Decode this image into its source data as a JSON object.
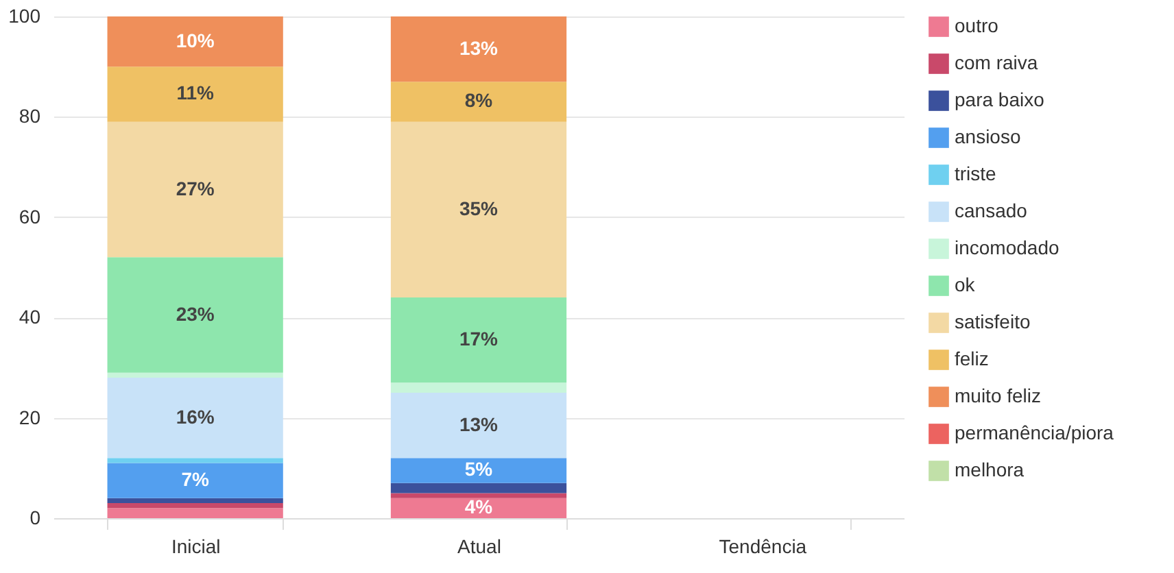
{
  "chart_data": {
    "type": "bar",
    "stacked": true,
    "categories": [
      "Inicial",
      "Atual",
      "Tendência"
    ],
    "ylim": [
      0,
      100
    ],
    "yticks": [
      0,
      20,
      40,
      60,
      80,
      100
    ],
    "grid": "y",
    "legend": "right",
    "series": [
      {
        "name": "outro",
        "color": "#ee7a92",
        "values": [
          2,
          4,
          null
        ],
        "value_labels": [
          null,
          "4%",
          null
        ]
      },
      {
        "name": "com raiva",
        "color": "#c9496a",
        "values": [
          1,
          1,
          null
        ],
        "value_labels": [
          null,
          null,
          null
        ]
      },
      {
        "name": "para baixo",
        "color": "#3b519c",
        "values": [
          1,
          2,
          null
        ],
        "value_labels": [
          null,
          null,
          null
        ]
      },
      {
        "name": "ansioso",
        "color": "#539fef",
        "values": [
          7,
          5,
          null
        ],
        "value_labels": [
          "7%",
          "5%",
          null
        ]
      },
      {
        "name": "triste",
        "color": "#6fd0f0",
        "values": [
          1,
          0,
          null
        ],
        "value_labels": [
          null,
          null,
          null
        ]
      },
      {
        "name": "cansado",
        "color": "#c8e2f8",
        "values": [
          16,
          13,
          null
        ],
        "value_labels": [
          "16%",
          "13%",
          null
        ]
      },
      {
        "name": "incomodado",
        "color": "#c8f5da",
        "values": [
          1,
          2,
          null
        ],
        "value_labels": [
          null,
          null,
          null
        ]
      },
      {
        "name": "ok",
        "color": "#8ee6ad",
        "values": [
          23,
          17,
          null
        ],
        "value_labels": [
          "23%",
          "17%",
          null
        ]
      },
      {
        "name": "satisfeito",
        "color": "#f3d9a4",
        "values": [
          27,
          35,
          null
        ],
        "value_labels": [
          "27%",
          "35%",
          null
        ]
      },
      {
        "name": "feliz",
        "color": "#efc164",
        "values": [
          11,
          8,
          null
        ],
        "value_labels": [
          "11%",
          "8%",
          null
        ]
      },
      {
        "name": "muito feliz",
        "color": "#ef8f5a",
        "values": [
          10,
          13,
          null
        ],
        "value_labels": [
          "10%",
          "13%",
          null
        ]
      },
      {
        "name": "permanência/piora",
        "color": "#ec6360",
        "values": [
          null,
          null,
          null
        ]
      },
      {
        "name": "melhora",
        "color": "#c1e0a8",
        "values": [
          null,
          null,
          null
        ]
      }
    ]
  }
}
